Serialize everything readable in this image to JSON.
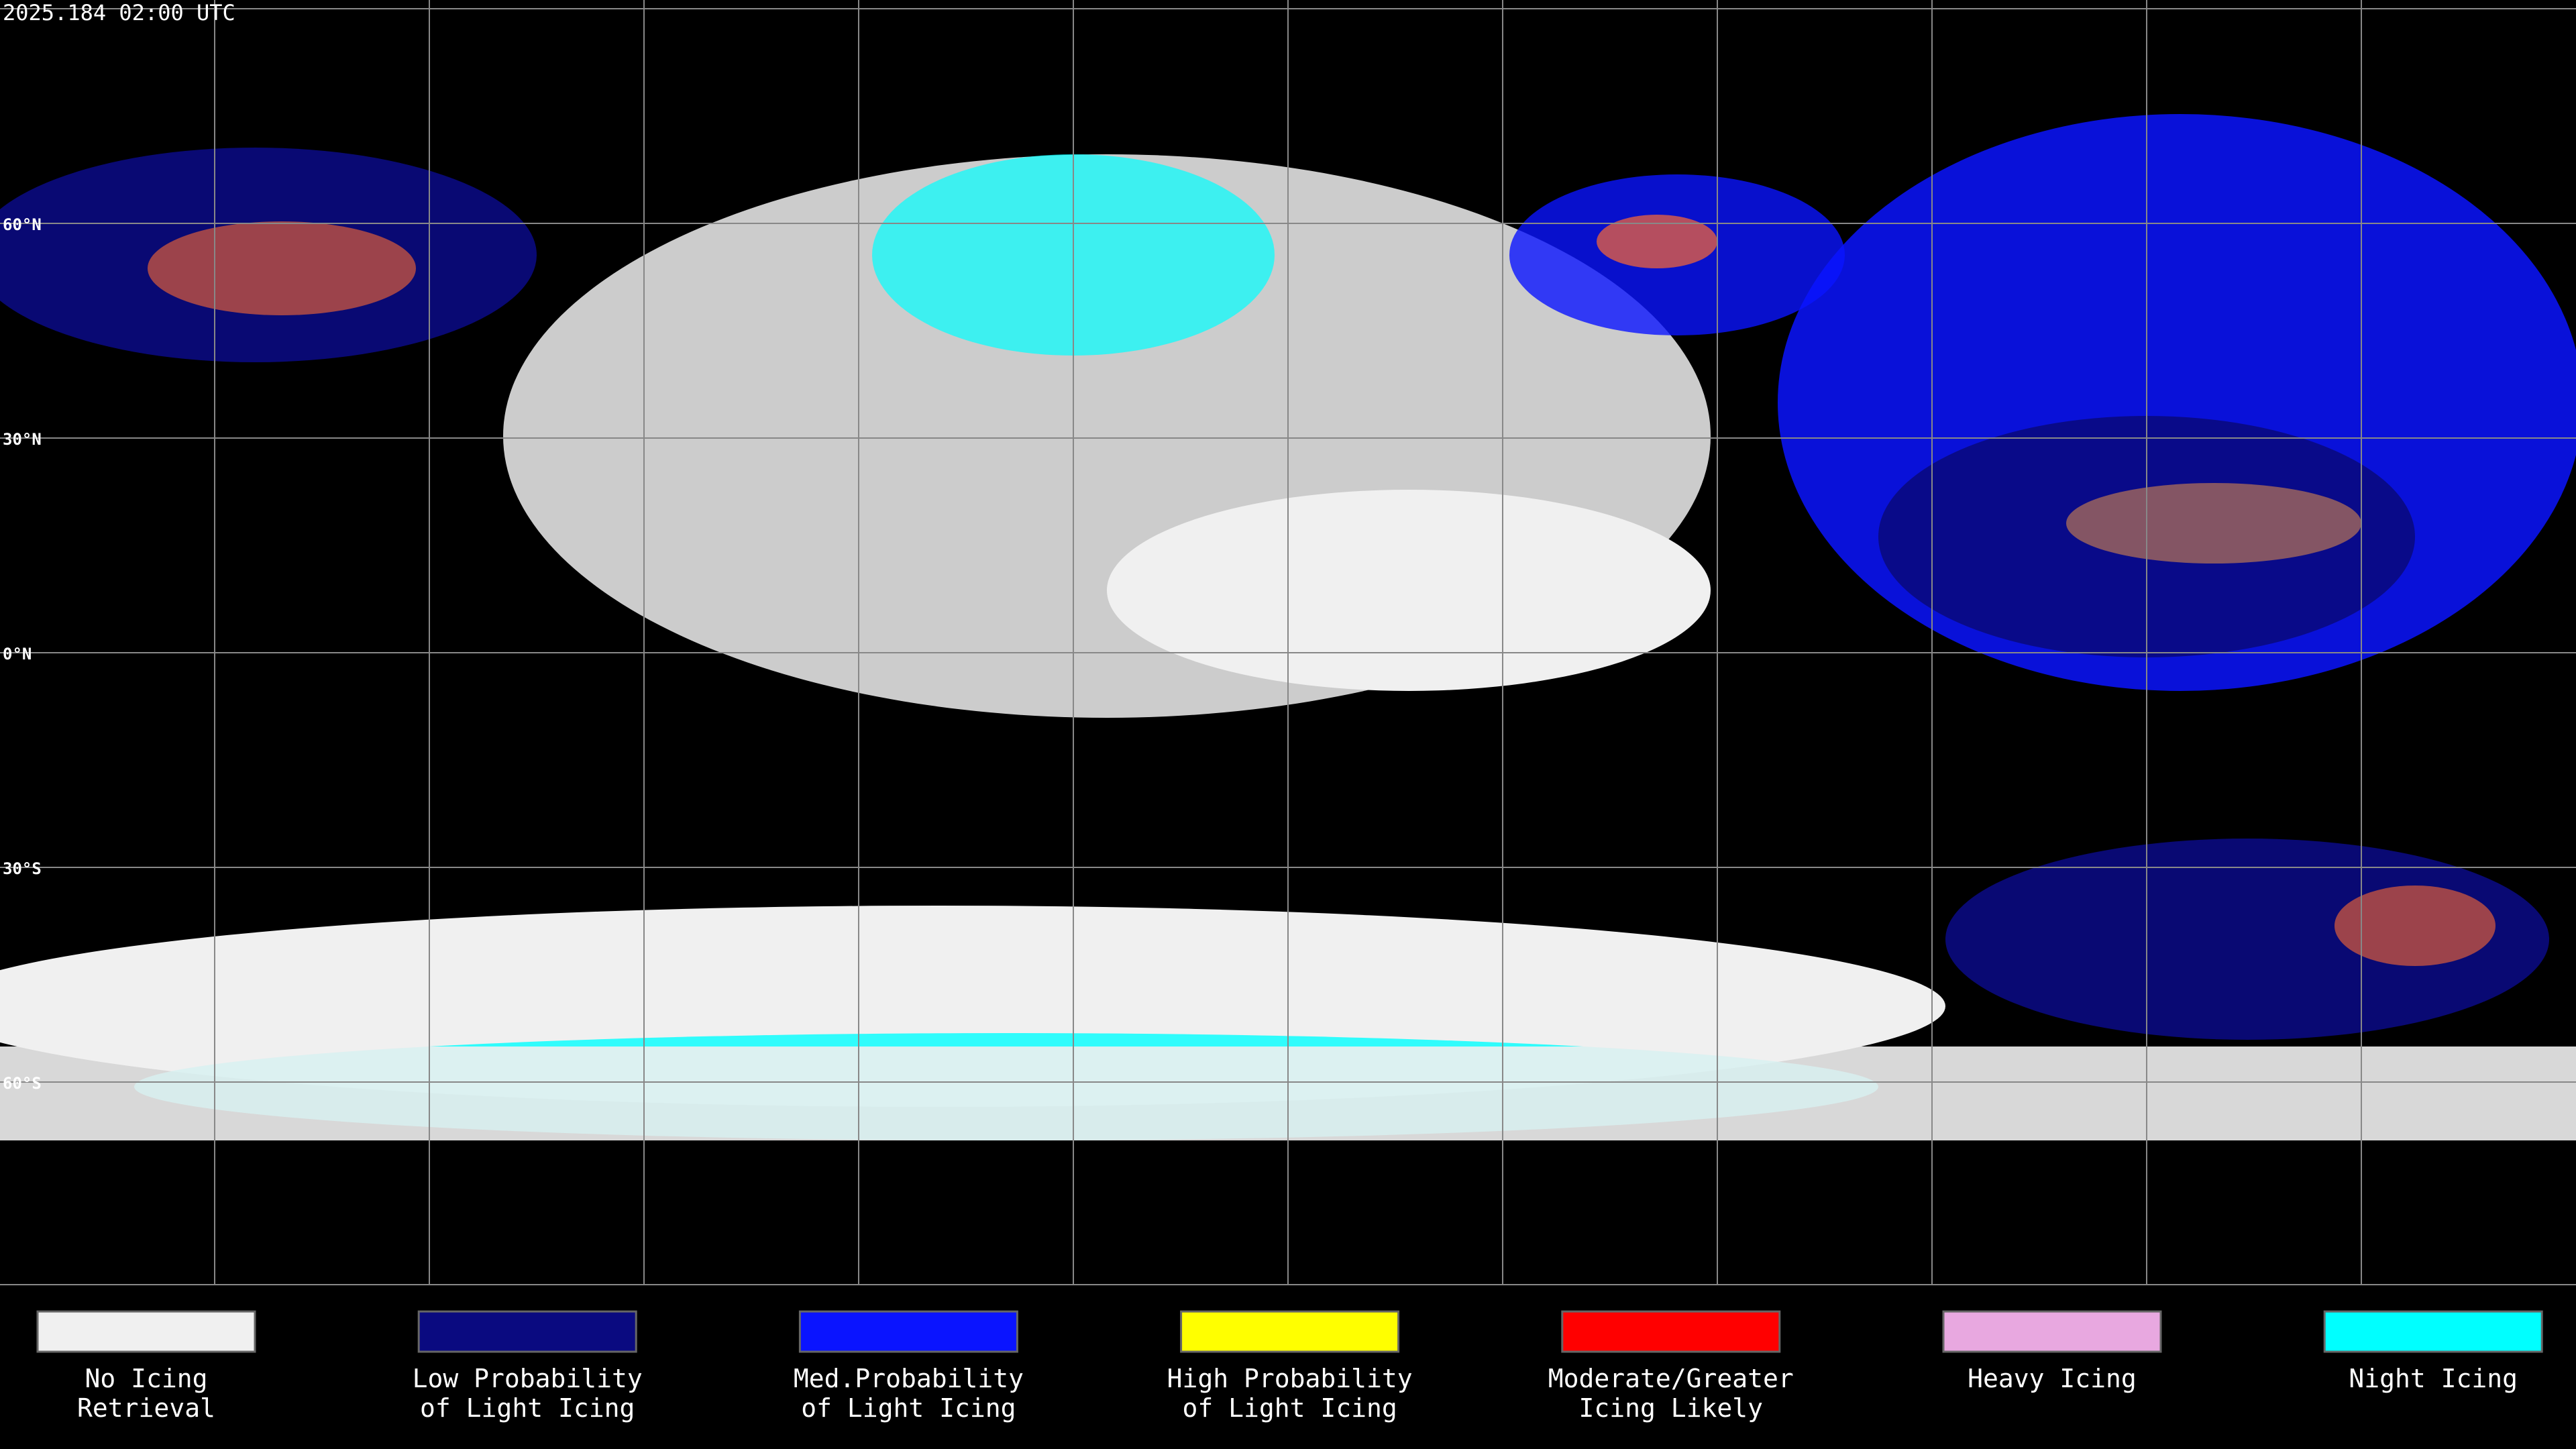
{
  "header": {
    "timestamp": "2025.184 02:00 UTC"
  },
  "map": {
    "lat_labels": [
      "60°N",
      "30°N",
      "0°N",
      "30°S",
      "60°S"
    ]
  },
  "legend": {
    "items": [
      {
        "lines": [
          "No Icing",
          "Retrieval"
        ],
        "color": "#f0f0f0"
      },
      {
        "lines": [
          "Low Probability",
          "of Light Icing"
        ],
        "color": "#0a0a80"
      },
      {
        "lines": [
          "Med.Probability",
          "of Light Icing"
        ],
        "color": "#0a14ff"
      },
      {
        "lines": [
          "High Probability",
          "of Light Icing"
        ],
        "color": "#ffff00"
      },
      {
        "lines": [
          "Moderate/Greater",
          "Icing Likely"
        ],
        "color": "#ff0000"
      },
      {
        "lines": [
          "Heavy Icing"
        ],
        "color": "#e8a8e0"
      },
      {
        "lines": [
          "Night Icing"
        ],
        "color": "#00ffff"
      }
    ]
  }
}
